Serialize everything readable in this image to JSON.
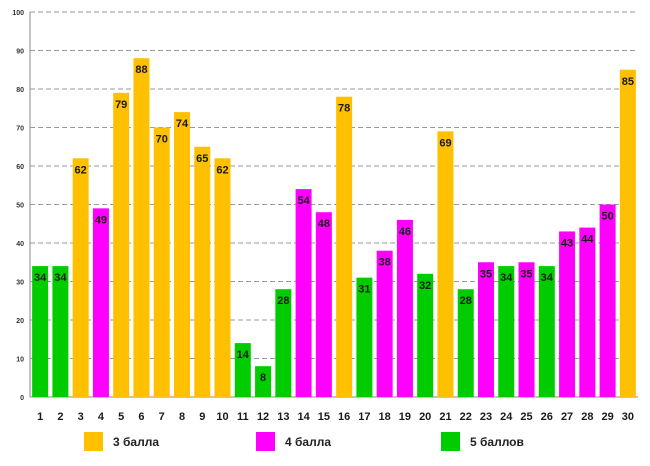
{
  "chart_data": {
    "type": "bar",
    "title": "",
    "xlabel": "",
    "ylabel": "",
    "ylim": [
      0,
      100
    ],
    "yticks": [
      "0",
      "10",
      "20",
      "30",
      "40",
      "50",
      "60",
      "70",
      "80",
      "90",
      "100"
    ],
    "grid": true,
    "categories": [
      "1",
      "2",
      "3",
      "4",
      "5",
      "6",
      "7",
      "8",
      "9",
      "10",
      "11",
      "12",
      "13",
      "14",
      "15",
      "16",
      "17",
      "18",
      "19",
      "20",
      "21",
      "22",
      "23",
      "24",
      "25",
      "26",
      "27",
      "28",
      "29",
      "30"
    ],
    "values": [
      34,
      34,
      62,
      49,
      79,
      88,
      70,
      74,
      65,
      62,
      14,
      8,
      28,
      54,
      48,
      78,
      31,
      38,
      46,
      32,
      69,
      28,
      35,
      34,
      35,
      34,
      43,
      44,
      50,
      85
    ],
    "groups": [
      "5 баллов",
      "5 баллов",
      "3 балла",
      "4 балла",
      "3 балла",
      "3 балла",
      "3 балла",
      "3 балла",
      "3 балла",
      "3 балла",
      "5 баллов",
      "5 баллов",
      "5 баллов",
      "4 балла",
      "4 балла",
      "3 балла",
      "5 баллов",
      "4 балла",
      "4 балла",
      "5 баллов",
      "3 балла",
      "5 баллов",
      "4 балла",
      "5 баллов",
      "4 балла",
      "5 баллов",
      "4 балла",
      "4 балла",
      "4 балла",
      "3 балла"
    ],
    "legend": [
      {
        "name": "3 балла",
        "color": "#FFC000"
      },
      {
        "name": "4 балла",
        "color": "#FF00FF"
      },
      {
        "name": "5 баллов",
        "color": "#00CC00"
      }
    ]
  }
}
